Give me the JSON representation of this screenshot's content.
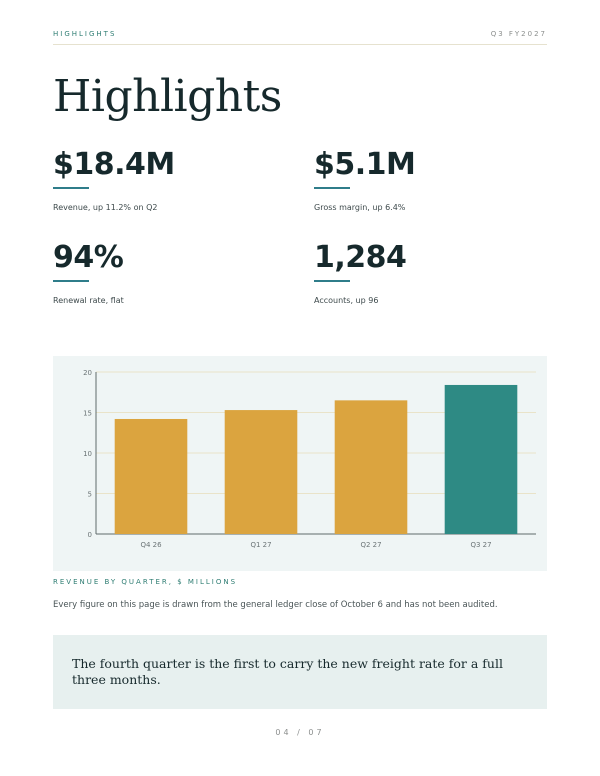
{
  "header": {
    "left": "HIGHLIGHTS",
    "right": "Q3 FY2027"
  },
  "page_title": "Highlights",
  "stats": [
    {
      "value": "$18.4M",
      "caption": "Revenue, up 11.2% on Q2"
    },
    {
      "value": "$5.1M",
      "caption": "Gross margin, up 6.4%"
    },
    {
      "value": "94%",
      "caption": "Renewal rate, flat"
    },
    {
      "value": "1,284",
      "caption": "Accounts, up 96"
    }
  ],
  "chart_caption": "REVENUE BY QUARTER, $ MILLIONS",
  "chart_data": {
    "type": "bar",
    "categories": [
      "Q4 26",
      "Q1 27",
      "Q2 27",
      "Q3 27"
    ],
    "values": [
      14.2,
      15.3,
      16.5,
      18.4
    ],
    "ylim": [
      0,
      20
    ],
    "yticks": [
      0,
      5,
      10,
      15,
      20
    ],
    "grid": true,
    "colors": [
      "#dba43f",
      "#dba43f",
      "#dba43f",
      "#2e8a84"
    ],
    "title": "",
    "xlabel": "",
    "ylabel": ""
  },
  "note": "Every figure on this page is drawn from the general ledger close of October 6 and has not been audited.",
  "quote": "The fourth quarter is the first to carry the new freight rate for a full three months.",
  "pager": "04 / 07"
}
